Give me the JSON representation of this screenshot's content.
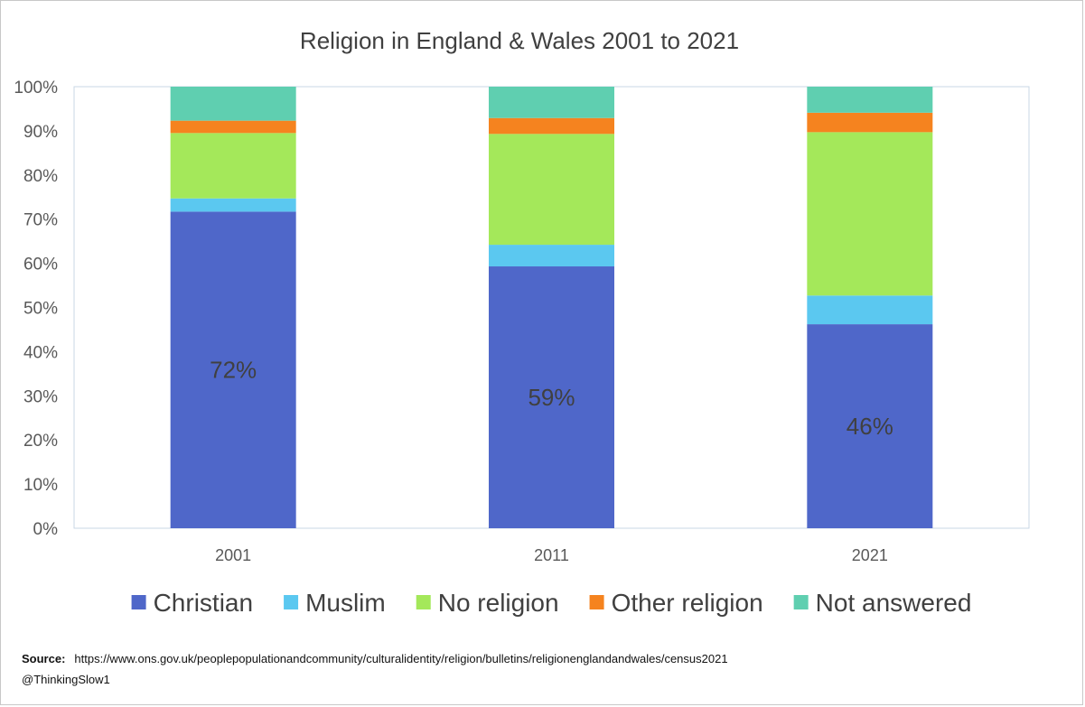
{
  "chart_data": {
    "type": "bar",
    "stacked": true,
    "title": "Religion in England & Wales 2001 to 2021",
    "categories": [
      "2001",
      "2011",
      "2021"
    ],
    "ylim": [
      0,
      100
    ],
    "y_ticks": [
      "0%",
      "10%",
      "20%",
      "30%",
      "40%",
      "50%",
      "60%",
      "70%",
      "80%",
      "90%",
      "100%"
    ],
    "legend_position": "bottom",
    "series": [
      {
        "name": "Christian",
        "color": "#4f67c9",
        "values": [
          71.7,
          59.3,
          46.2
        ]
      },
      {
        "name": "Muslim",
        "color": "#5bc8f0",
        "values": [
          3.0,
          4.9,
          6.5
        ]
      },
      {
        "name": "No religion",
        "color": "#a4e85a",
        "values": [
          14.8,
          25.1,
          37.0
        ]
      },
      {
        "name": "Other religion",
        "color": "#f5831f",
        "values": [
          2.8,
          3.6,
          4.4
        ]
      },
      {
        "name": "Not answered",
        "color": "#5fcfb0",
        "values": [
          7.7,
          7.1,
          5.9
        ]
      }
    ],
    "data_labels": [
      {
        "category": "2001",
        "series": "Christian",
        "text": "72%"
      },
      {
        "category": "2011",
        "series": "Christian",
        "text": "59%"
      },
      {
        "category": "2021",
        "series": "Christian",
        "text": "46%"
      }
    ]
  },
  "footer": {
    "source_label": "Source:",
    "source_url": "https://www.ons.gov.uk/peoplepopulationandcommunity/culturalidentity/religion/bulletins/religionenglandandwales/census2021",
    "handle": "@ThinkingSlow1"
  }
}
